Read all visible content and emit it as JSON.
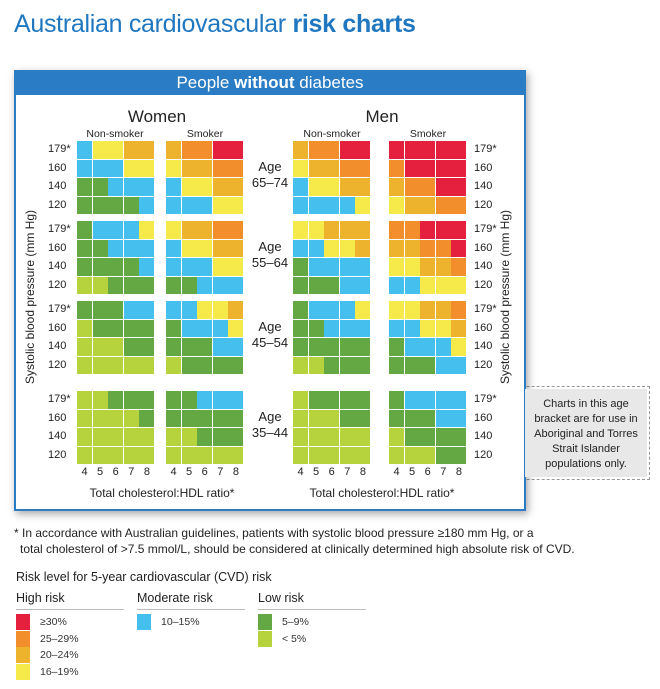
{
  "title": {
    "regular": "Australian cardiovascular ",
    "bold": "risk charts"
  },
  "panel": {
    "pre": "People ",
    "bold": "without",
    "post": " diabetes"
  },
  "groups": {
    "women": "Women",
    "men": "Men",
    "non_smoker": "Non-smoker",
    "smoker": "Smoker"
  },
  "bp_labels": [
    "179*",
    "160",
    "140",
    "120"
  ],
  "y_axis_label": "Systolic blood pressure (mm Hg)",
  "x_ticks": [
    "4",
    "5",
    "6",
    "7",
    "8"
  ],
  "x_axis_label": "Total cholesterol:HDL ratio*",
  "age_label": "Age",
  "note": "Charts in this age bracket are for use in Aboriginal and Torres Strait Islander populations only.",
  "footnote": [
    "* In accordance with Australian guidelines, patients with systolic blood pressure ≥180 mm Hg, or a",
    "total cholesterol of >7.5 mmol/L, should be considered at clinically determined high absolute risk of CVD."
  ],
  "colors": {
    "R": "#e51f3e",
    "O": "#f28f2c",
    "A": "#eeb32c",
    "Y": "#f5ea4a",
    "B": "#45c0ee",
    "G": "#64a844",
    "L": "#b6d33d"
  },
  "legend": {
    "title": "Risk level for 5-year cardiovascular (CVD) risk",
    "groups": [
      {
        "label": "High risk",
        "items": [
          {
            "code": "R",
            "label": "≥30%"
          },
          {
            "code": "O",
            "label": "25–29%"
          },
          {
            "code": "A",
            "label": "20–24%"
          },
          {
            "code": "Y",
            "label": "16–19%"
          }
        ]
      },
      {
        "label": "Moderate risk",
        "items": [
          {
            "code": "B",
            "label": "10–15%"
          }
        ]
      },
      {
        "label": "Low risk",
        "items": [
          {
            "code": "G",
            "label": "5–9%"
          },
          {
            "code": "L",
            "label": "< 5%"
          }
        ]
      }
    ]
  },
  "chart_data": {
    "type": "heatmap",
    "bands": [
      {
        "age": "65–74",
        "women_non_smoker": [
          "BYYAA",
          "BBBYY",
          "GGBBB",
          "GGGGB"
        ],
        "women_smoker": [
          "AOORR",
          "YAAOO",
          "BYYAA",
          "BBBYY"
        ],
        "men_non_smoker": [
          "AOORR",
          "YAAOO",
          "BYYAA",
          "BBBBY"
        ],
        "men_smoker": [
          "RRRRR",
          "ORRRR",
          "AOORR",
          "YAAOO"
        ]
      },
      {
        "age": "55–64",
        "women_non_smoker": [
          "GBBBY",
          "GGBBB",
          "GGGGB",
          "LLGGG"
        ],
        "women_smoker": [
          "YAAOO",
          "BYYAA",
          "BBBYY",
          "GGBBB"
        ],
        "men_non_smoker": [
          "YYAAA",
          "BBYYA",
          "GBBBB",
          "GGGBB"
        ],
        "men_smoker": [
          "OORRR",
          "AAOOR",
          "YYAAO",
          "BBYYY"
        ]
      },
      {
        "age": "45–54",
        "women_non_smoker": [
          "GGGBB",
          "LGGGG",
          "LLLGG",
          "LLLLL"
        ],
        "women_smoker": [
          "BBYYA",
          "GBBBY",
          "GGGBB",
          "LGGGG"
        ],
        "men_non_smoker": [
          "GBBBY",
          "GGBBB",
          "GGGGG",
          "LLGGG"
        ],
        "men_smoker": [
          "YYAAO",
          "BBYYA",
          "GBBBY",
          "GGGBB"
        ]
      },
      {
        "age": "35–44",
        "women_non_smoker": [
          "LLGGG",
          "LLLLG",
          "LLLLL",
          "LLLLL"
        ],
        "women_smoker": [
          "GGBBB",
          "GGGGG",
          "LLGGG",
          "LLLLL"
        ],
        "men_non_smoker": [
          "LGGGG",
          "LLLGG",
          "LLLLL",
          "LLLLL"
        ],
        "men_smoker": [
          "GBBBB",
          "GGGBB",
          "LGGGG",
          "LLLGG"
        ]
      }
    ]
  }
}
